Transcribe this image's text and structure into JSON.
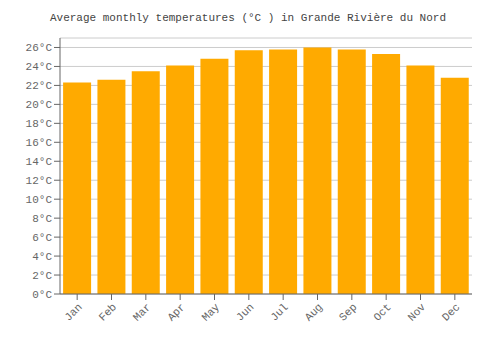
{
  "chart_data": {
    "type": "bar",
    "title": "Average monthly temperatures (°C ) in Grande Rivière du Nord",
    "categories": [
      "Jan",
      "Feb",
      "Mar",
      "Apr",
      "May",
      "Jun",
      "Jul",
      "Aug",
      "Sep",
      "Oct",
      "Nov",
      "Dec"
    ],
    "values": [
      22.3,
      22.6,
      23.5,
      24.1,
      24.8,
      25.7,
      25.8,
      26.0,
      25.8,
      25.3,
      24.1,
      22.8
    ],
    "color": "#FFAA00",
    "ylim": [
      0,
      27
    ],
    "yticks": [
      {
        "value": 0,
        "label": "0°C"
      },
      {
        "value": 2,
        "label": "2°C"
      },
      {
        "value": 4,
        "label": "4°C"
      },
      {
        "value": 6,
        "label": "6°C"
      },
      {
        "value": 8,
        "label": "8°C"
      },
      {
        "value": 10,
        "label": "10°C"
      },
      {
        "value": 12,
        "label": "12°C"
      },
      {
        "value": 14,
        "label": "14°C"
      },
      {
        "value": 16,
        "label": "16°C"
      },
      {
        "value": 18,
        "label": "18°C"
      },
      {
        "value": 20,
        "label": "20°C"
      },
      {
        "value": 22,
        "label": "22°C"
      },
      {
        "value": 24,
        "label": "24°C"
      },
      {
        "value": 26,
        "label": "26°C"
      }
    ],
    "grid": true
  }
}
